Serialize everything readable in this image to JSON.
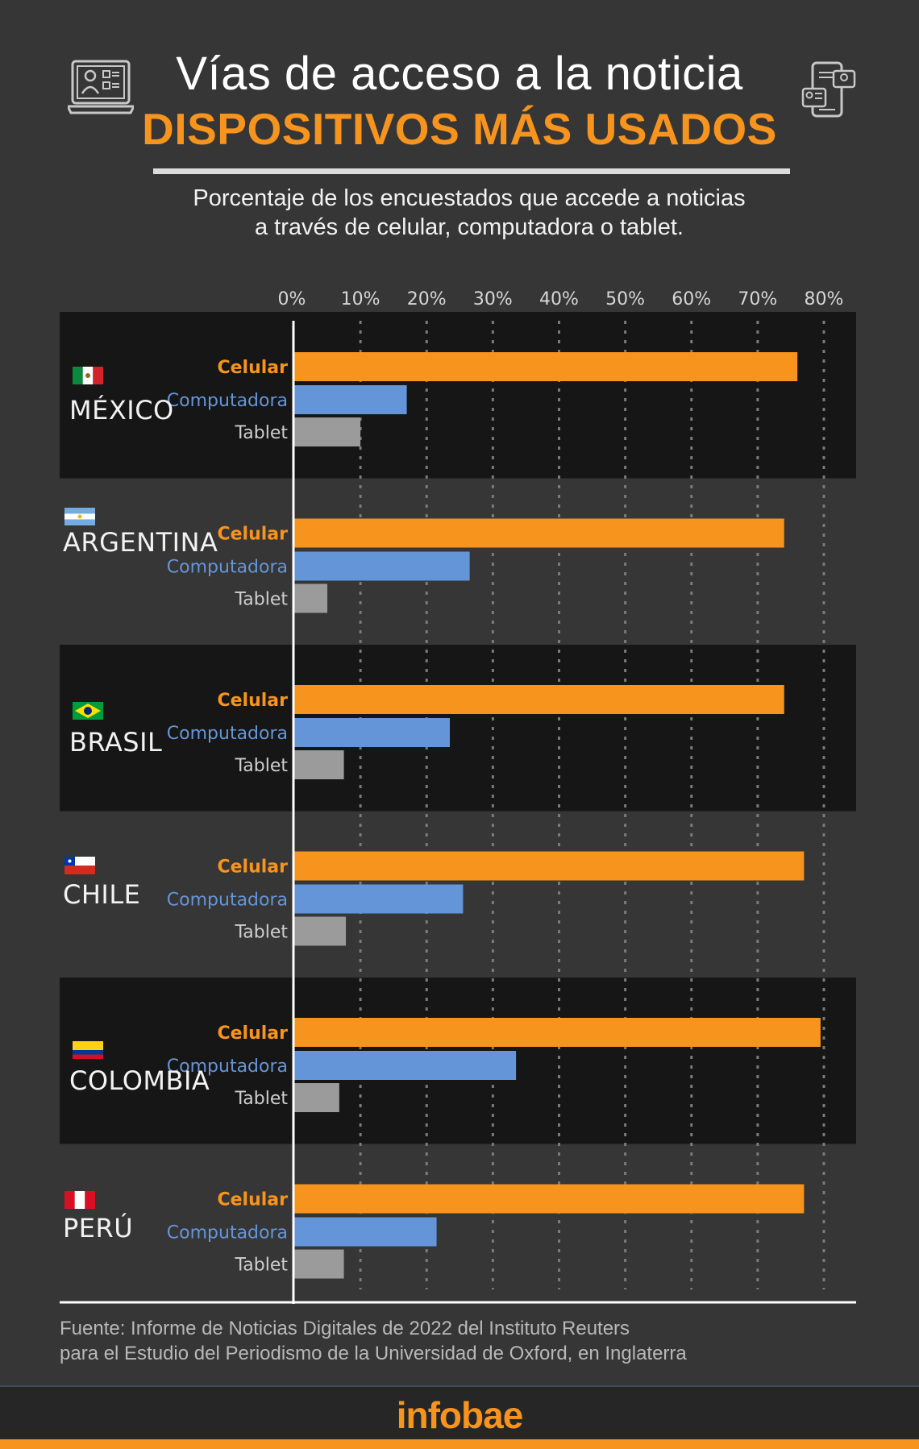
{
  "header": {
    "title": "Vías de acceso a la noticia",
    "subtitle": "DISPOSITIVOS MÁS USADOS",
    "description_line1": "Porcentaje de los encuestados que accede a noticias",
    "description_line2": "a través de celular, computadora o tablet."
  },
  "icons": {
    "left": "laptop-profile-icon",
    "right": "multiple-devices-icon"
  },
  "colors": {
    "background": "#363636",
    "band": "#161616",
    "celular": "#f7941d",
    "computadora": "#6495d8",
    "tablet": "#9b9b9b",
    "accent": "#f7941d"
  },
  "chart_data": {
    "type": "bar",
    "orientation": "horizontal",
    "xlim": [
      0,
      80
    ],
    "x_ticks": [
      "0%",
      "10%",
      "20%",
      "30%",
      "40%",
      "50%",
      "60%",
      "70%",
      "80%"
    ],
    "grid": true,
    "series_names": [
      "Celular",
      "Computadora",
      "Tablet"
    ],
    "groups": [
      {
        "country": "MÉXICO",
        "flag": "mexico-flag-icon",
        "values": [
          76,
          17,
          10
        ]
      },
      {
        "country": "ARGENTINA",
        "flag": "argentina-flag-icon",
        "values": [
          74,
          26.5,
          5
        ]
      },
      {
        "country": "BRASIL",
        "flag": "brazil-flag-icon",
        "values": [
          74,
          23.5,
          7.5
        ]
      },
      {
        "country": "CHILE",
        "flag": "chile-flag-icon",
        "values": [
          77,
          25.5,
          7.8
        ]
      },
      {
        "country": "COLOMBIA",
        "flag": "colombia-flag-icon",
        "values": [
          79.5,
          33.5,
          6.8
        ]
      },
      {
        "country": "PERÚ",
        "flag": "peru-flag-icon",
        "values": [
          77,
          21.5,
          7.5
        ]
      }
    ]
  },
  "footer": {
    "source_line1": "Fuente: Informe de Noticias Digitales de 2022 del Instituto Reuters",
    "source_line2": "para el Estudio del Periodismo de la Universidad de Oxford, en Inglaterra",
    "logo": "infobae"
  }
}
